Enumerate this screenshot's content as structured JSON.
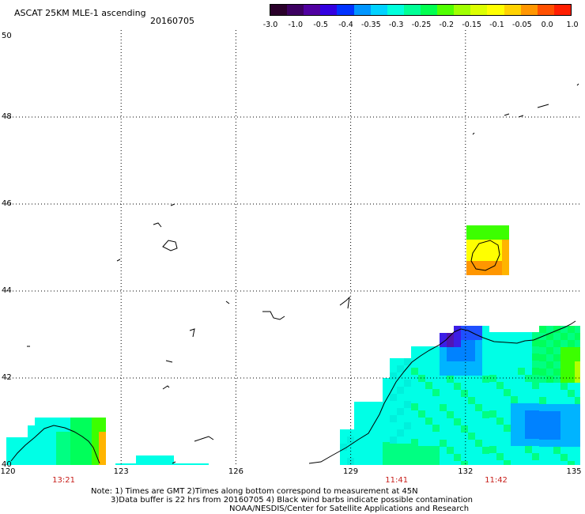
{
  "header": {
    "title": "ASCAT 25KM MLE-1 ascending",
    "date": "20160705"
  },
  "colorbar": {
    "labels": [
      "-3.0",
      "-1.0",
      "-0.5",
      "-0.4",
      "-0.35",
      "-0.3",
      "-0.25",
      "-0.2",
      "-0.15",
      "-0.1",
      "-0.05",
      "0.0",
      "1.0"
    ],
    "colors": [
      "#2a002a",
      "#3c0060",
      "#5000a0",
      "#3300e0",
      "#0032ff",
      "#0096ff",
      "#00d2ff",
      "#00ffdc",
      "#00ff96",
      "#00ff50",
      "#50ff00",
      "#a0ff00",
      "#dcff00",
      "#ffff00",
      "#ffd200",
      "#ff9600",
      "#ff5000",
      "#ff1e00"
    ]
  },
  "axes": {
    "lat_labels": [
      "50",
      "48",
      "46",
      "44",
      "42",
      "40"
    ],
    "lon_labels": [
      "120",
      "123",
      "126",
      "129",
      "132",
      "135"
    ],
    "lat_values": [
      50,
      48,
      46,
      44,
      42,
      40
    ],
    "lon_values": [
      120,
      123,
      126,
      129,
      132,
      135
    ],
    "lat_range": [
      40,
      50
    ],
    "lon_range": [
      120,
      135
    ]
  },
  "swath_times": [
    {
      "label": "13:21",
      "lon": 121.5
    },
    {
      "label": "11:41",
      "lon": 130.2
    },
    {
      "label": "11:42",
      "lon": 132.8
    }
  ],
  "notes": {
    "line1": "Note: 1) Times are GMT 2)Times along bottom correspond to measurement at 45N",
    "line2": "3)Data buffer is 22 hrs from 20160705 4) Black wind barbs indicate possible contamination",
    "line3": "NOAA/NESDIS/Center for Satellite Applications and Research"
  },
  "colors": {
    "grid": "#000000",
    "coastline": "#000000",
    "time_label": "#c8201c"
  }
}
